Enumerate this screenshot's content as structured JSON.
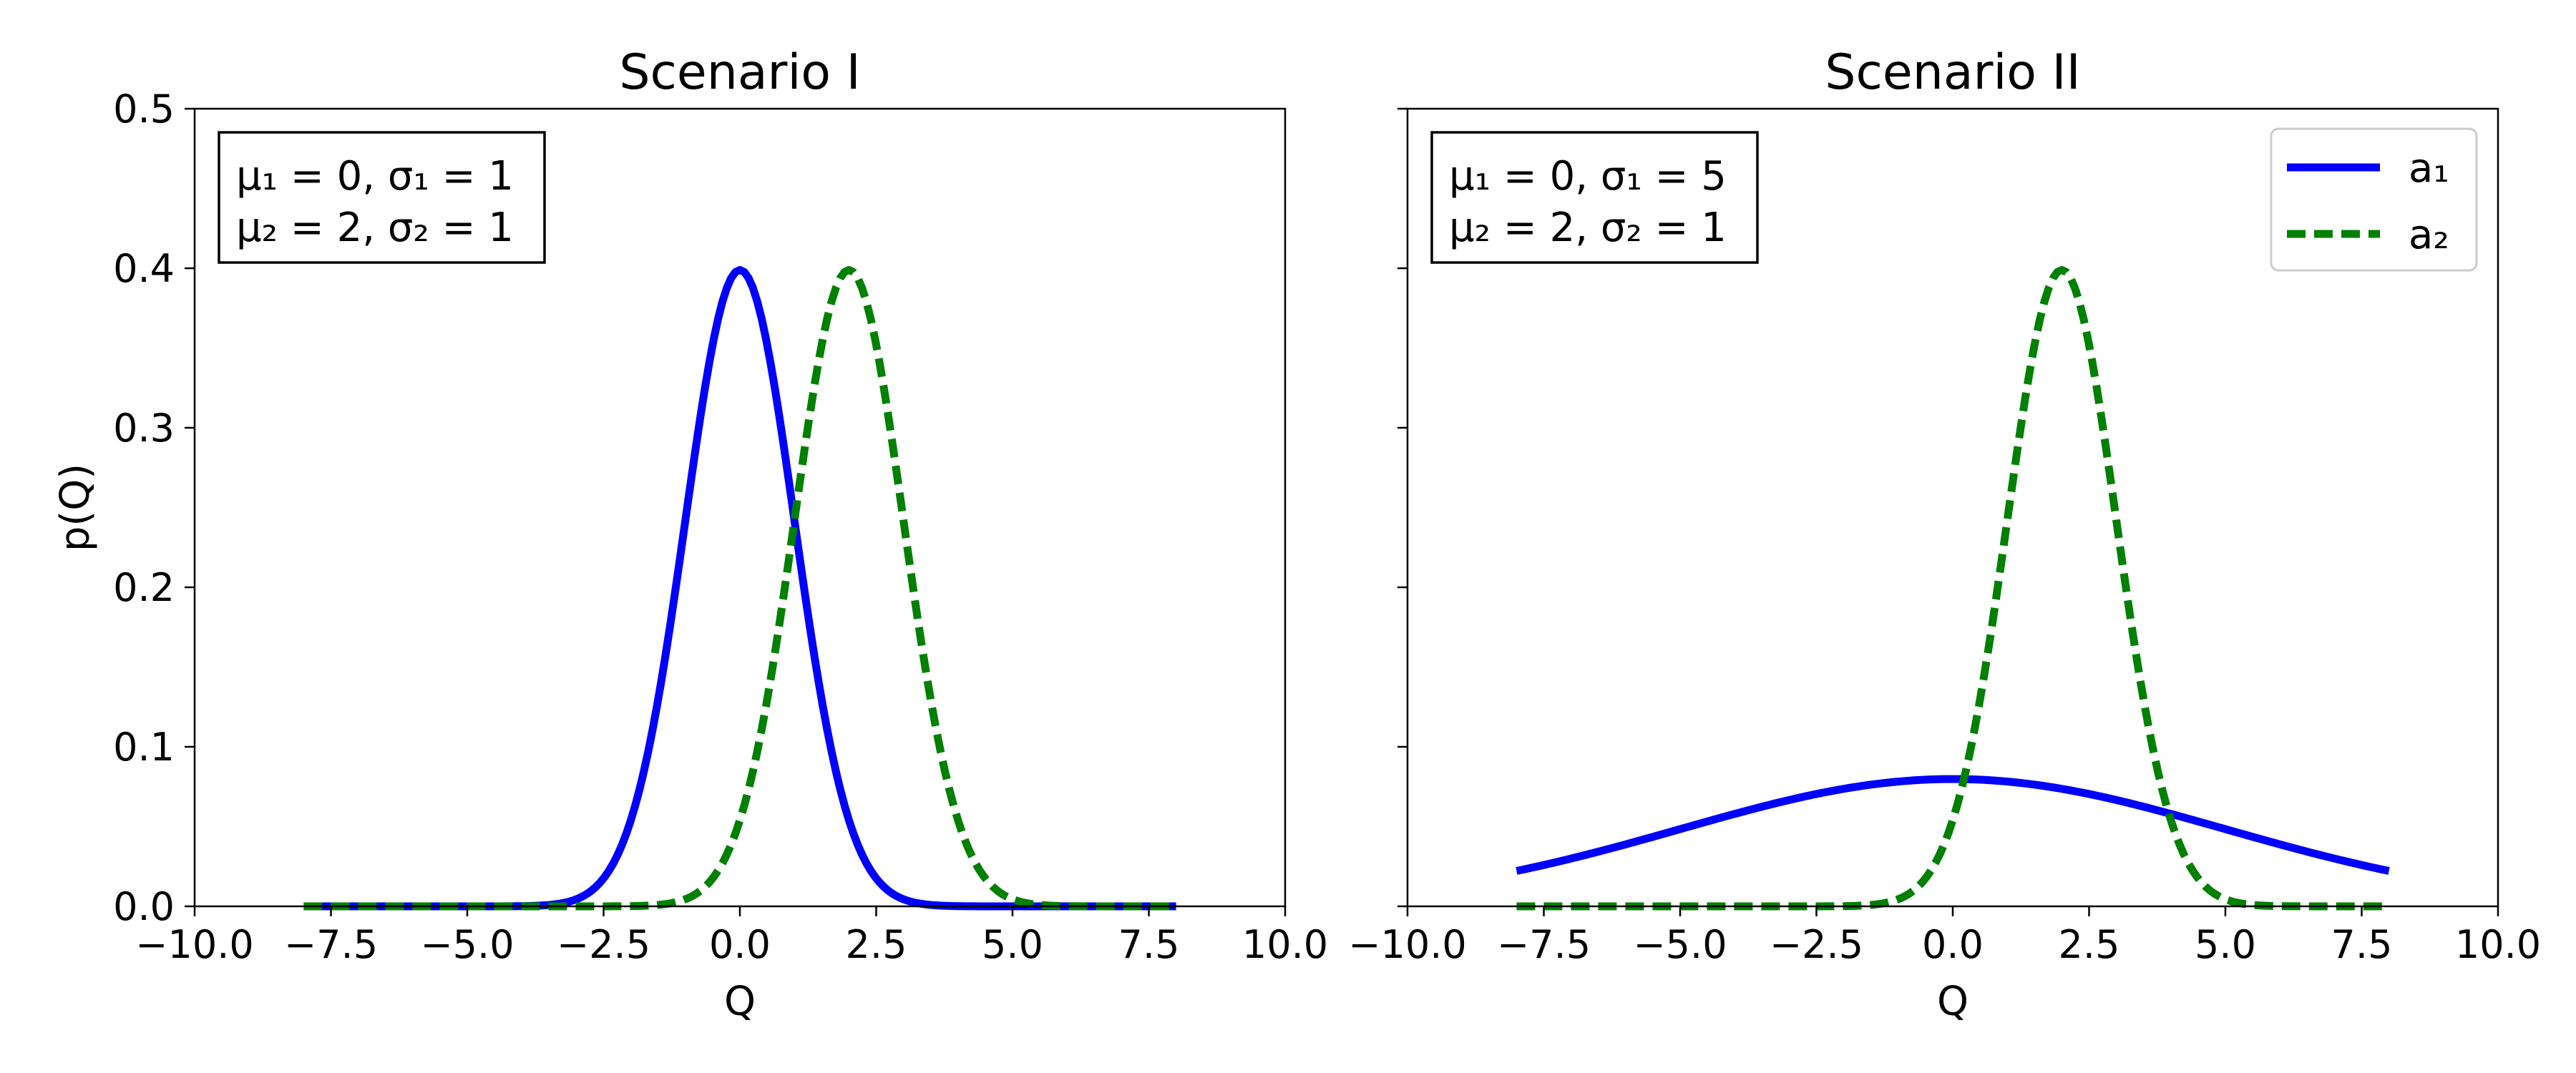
{
  "chart_data": [
    {
      "type": "line",
      "title": "Scenario I",
      "xlabel": "Q",
      "ylabel": "p(Q)",
      "xlim": [
        -10,
        10
      ],
      "ylim": [
        0,
        0.5
      ],
      "xticks": [
        "−10.0",
        "−7.5",
        "−5.0",
        "−2.5",
        "0.0",
        "2.5",
        "5.0",
        "7.5",
        "10.0"
      ],
      "yticks": [
        "0.0",
        "0.1",
        "0.2",
        "0.3",
        "0.4",
        "0.5"
      ],
      "x_range": [
        -8,
        8
      ],
      "annotation": [
        "μ₁ = 0, σ₁ = 1",
        "μ₂ = 2, σ₂ = 1"
      ],
      "grid": false,
      "series": [
        {
          "mu": 0,
          "sigma": 1,
          "style": "solid",
          "color": "#0000ff"
        },
        {
          "mu": 2,
          "sigma": 1,
          "style": "dashed",
          "color": "#008000"
        }
      ]
    },
    {
      "type": "line",
      "title": "Scenario II",
      "xlabel": "Q",
      "ylabel": "",
      "xlim": [
        -10,
        10
      ],
      "ylim": [
        0,
        0.5
      ],
      "xticks": [
        "−10.0",
        "−7.5",
        "−5.0",
        "−2.5",
        "0.0",
        "2.5",
        "5.0",
        "7.5",
        "10.0"
      ],
      "yticks": [
        "",
        "",
        "",
        "",
        "",
        ""
      ],
      "x_range": [
        -8,
        8
      ],
      "annotation": [
        "μ₁ = 0, σ₁ = 5",
        "μ₂ = 2, σ₂ = 1"
      ],
      "grid": false,
      "legend_position": "upper right",
      "series": [
        {
          "name": "a₁",
          "mu": 0,
          "sigma": 5,
          "style": "solid",
          "color": "#0000ff"
        },
        {
          "name": "a₂",
          "mu": 2,
          "sigma": 1,
          "style": "dashed",
          "color": "#008000"
        }
      ]
    }
  ]
}
